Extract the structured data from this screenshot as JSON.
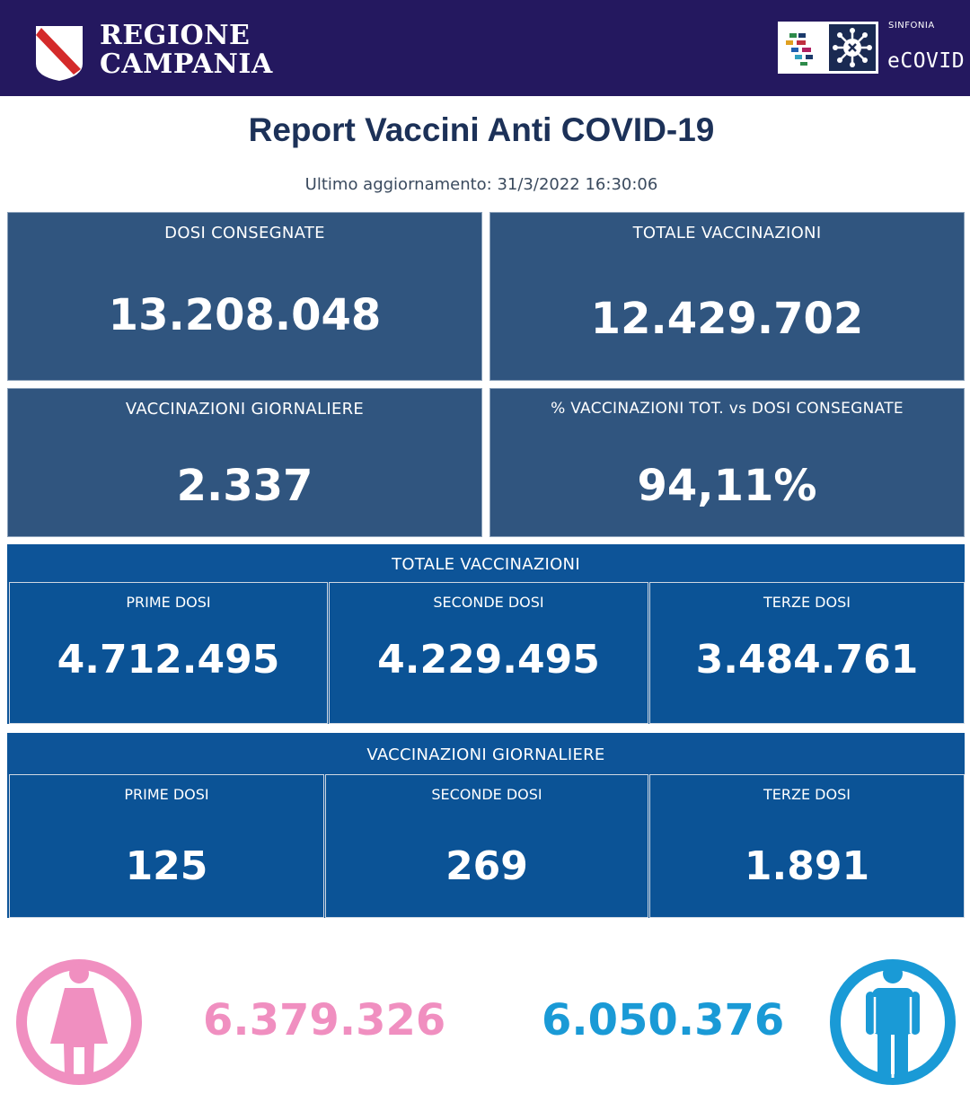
{
  "header": {
    "region_line1": "REGIONE",
    "region_line2": "CAMPANIA",
    "brand_small": "SINFONIA",
    "brand_name": "eCOVID",
    "colors": {
      "header_bg": "#24185f",
      "crest_red": "#d42a2a"
    }
  },
  "report": {
    "title": "Report Vaccini Anti COVID-19",
    "last_update": "Ultimo aggiornamento: 31/3/2022  16:30:06"
  },
  "summary": {
    "dosi_consegnate": {
      "label": "DOSI  CONSEGNATE",
      "value": "13.208.048"
    },
    "totale_vaccinazioni": {
      "label": "TOTALE VACCINAZIONI",
      "value": "12.429.702"
    },
    "vaccinazioni_giornaliere": {
      "label": "VACCINAZIONI GIORNALIERE",
      "value": "2.337"
    },
    "percentuale": {
      "label": "% VACCINAZIONI TOT. vs DOSI CONSEGNATE",
      "value": "94,11%"
    }
  },
  "totale_band": {
    "title": "TOTALE VACCINAZIONI",
    "cells": [
      {
        "label": "PRIME DOSI",
        "value": "4.712.495"
      },
      {
        "label": "SECONDE DOSI",
        "value": "4.229.495"
      },
      {
        "label": "TERZE DOSI",
        "value": "3.484.761"
      }
    ]
  },
  "giornaliere_band": {
    "title": "VACCINAZIONI GIORNALIERE",
    "cells": [
      {
        "label": "PRIME DOSI",
        "value": "125"
      },
      {
        "label": "SECONDE DOSI",
        "value": "269"
      },
      {
        "label": "TERZE DOSI",
        "value": "1.891"
      }
    ]
  },
  "gender": {
    "female": {
      "icon": "female-icon",
      "value": "6.379.326",
      "color": "#f08fc0"
    },
    "male": {
      "icon": "male-icon",
      "value": "6.050.376",
      "color": "#1a9ad6"
    }
  }
}
